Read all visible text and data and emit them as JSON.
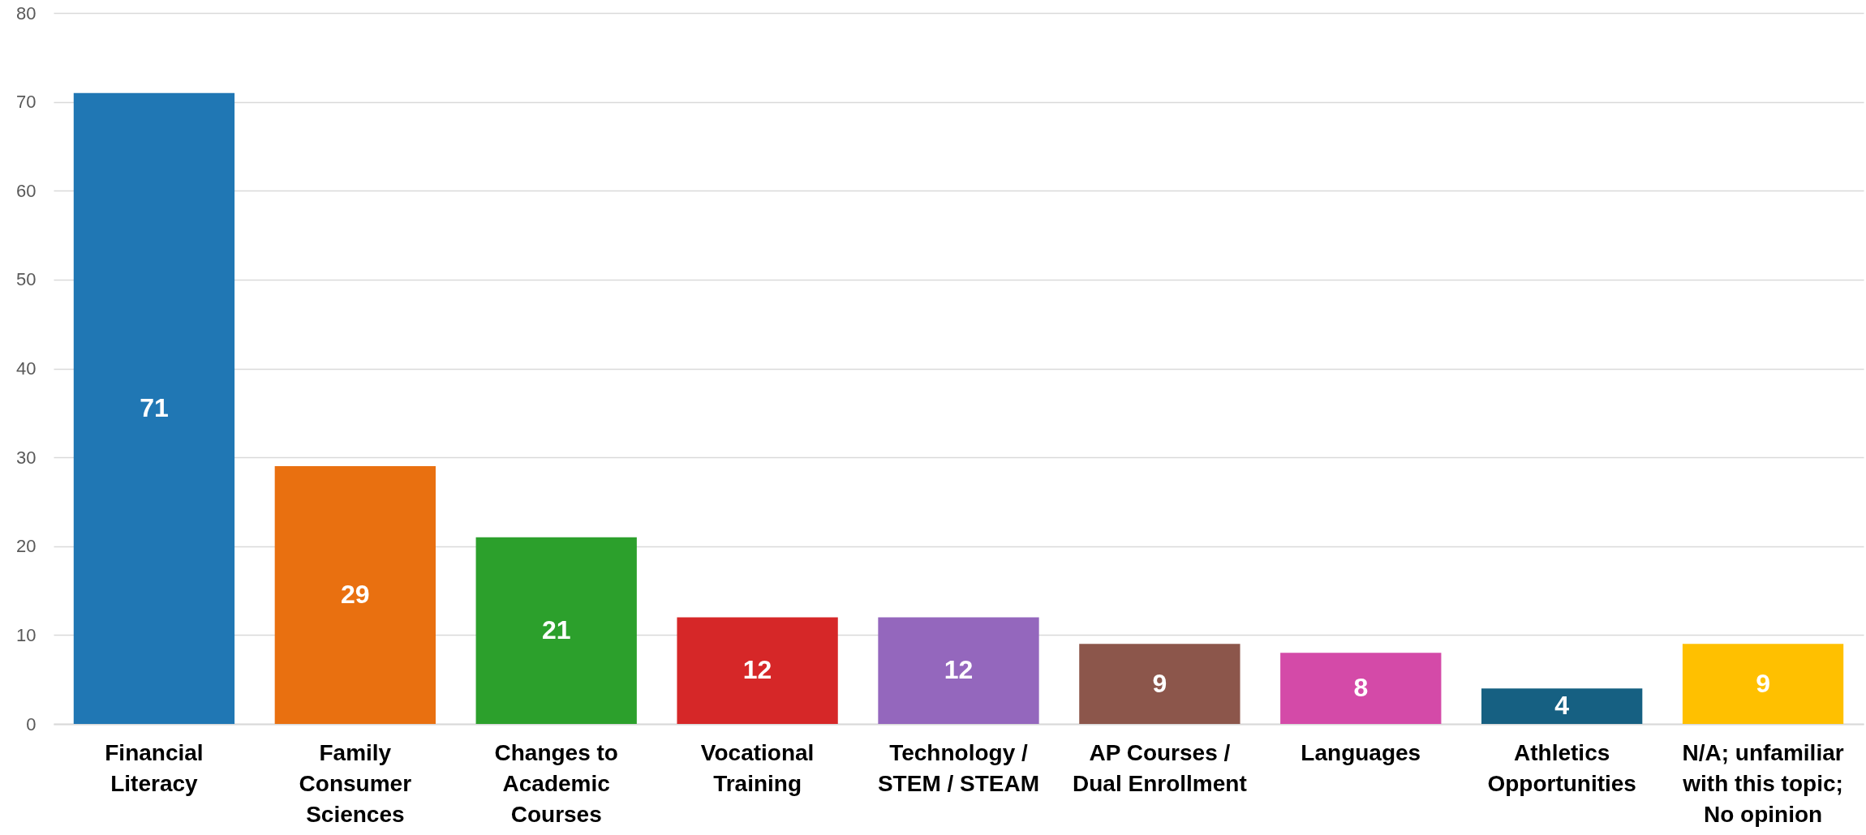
{
  "chart_data": {
    "type": "bar",
    "categories": [
      "Financial Literacy",
      "Family Consumer Sciences",
      "Changes to Academic Courses",
      "Vocational Training",
      "Technology / STEM / STEAM",
      "AP Courses / Dual Enrollment",
      "Languages",
      "Athletics Opportunities",
      "N/A; unfamiliar with this topic; No opinion"
    ],
    "values": [
      71,
      29,
      21,
      12,
      12,
      9,
      8,
      4,
      9
    ],
    "colors": [
      "#2077b4",
      "#e97010",
      "#2ca02c",
      "#d62728",
      "#9467bd",
      "#8c564b",
      "#d44aa8",
      "#166082",
      "#ffc000"
    ],
    "ylim": [
      0,
      80
    ],
    "yticks": [
      0,
      10,
      20,
      30,
      40,
      50,
      60,
      70,
      80
    ],
    "grid": "y",
    "data_labels": true
  }
}
